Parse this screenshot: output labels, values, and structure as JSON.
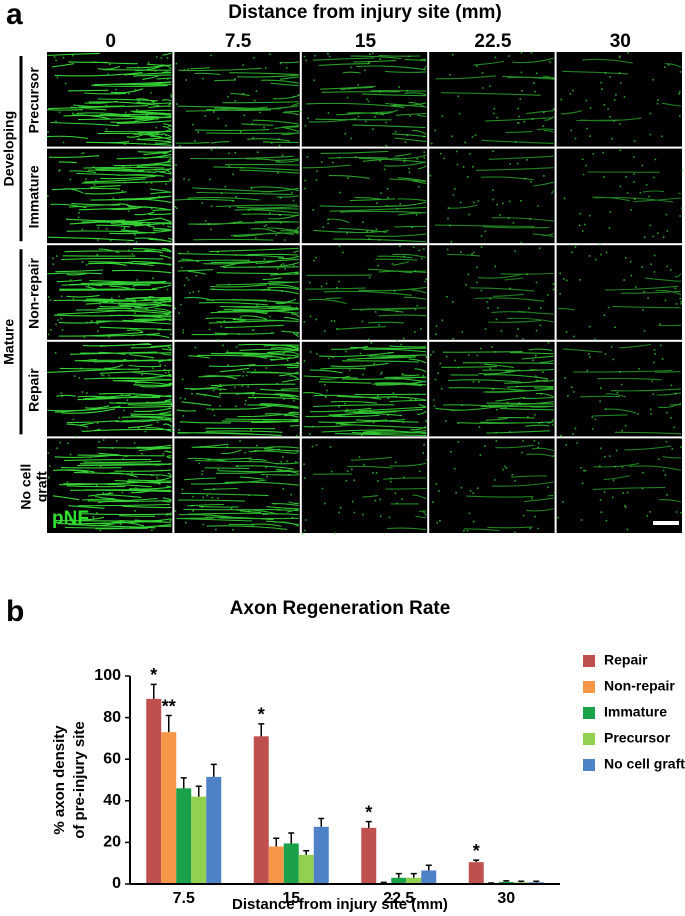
{
  "panel_a": {
    "label": "a",
    "title": "Distance from injury site (mm)",
    "columns": [
      "0",
      "7.5",
      "15",
      "22.5",
      "30"
    ],
    "groups": [
      {
        "name": "Developing",
        "rows": [
          {
            "label_lines": [
              "Precursor"
            ]
          },
          {
            "label_lines": [
              "Immature"
            ]
          }
        ]
      },
      {
        "name": "Mature",
        "rows": [
          {
            "label_lines": [
              "Non-repair"
            ]
          },
          {
            "label_lines": [
              "Repair"
            ]
          }
        ]
      }
    ],
    "extra_rows": [
      {
        "label_lines": [
          "No cell",
          "graft"
        ]
      }
    ],
    "stain": "pNF"
  },
  "panel_b": {
    "label": "b",
    "chart_data": {
      "type": "bar",
      "title": "Axon Regeneration Rate",
      "xlabel": "Distance from injury site (mm)",
      "ylabel_lines": [
        "% axon density",
        "of pre-injury site"
      ],
      "categories": [
        "7.5",
        "15",
        "22.5",
        "30"
      ],
      "series": [
        {
          "name": "Repair",
          "color": "#c0504d",
          "values": [
            89,
            71,
            27,
            10.5
          ],
          "errors": [
            7,
            6,
            3,
            1
          ]
        },
        {
          "name": "Non-repair",
          "color": "#f79646",
          "values": [
            73,
            18,
            0.5,
            0.3
          ],
          "errors": [
            8,
            4,
            0.3,
            0.2
          ]
        },
        {
          "name": "Immature",
          "color": "#1aa14a",
          "values": [
            46,
            19.5,
            3,
            1
          ],
          "errors": [
            5,
            5,
            2,
            0.5
          ]
        },
        {
          "name": "Precursor",
          "color": "#92d050",
          "values": [
            42,
            14,
            3,
            0.8
          ],
          "errors": [
            5,
            2,
            2,
            0.5
          ]
        },
        {
          "name": "No cell graft",
          "color": "#4f81c7",
          "values": [
            51.5,
            27.5,
            6.5,
            0.8
          ],
          "errors": [
            6,
            4,
            2.5,
            0.5
          ]
        }
      ],
      "annotations": [
        {
          "text": "*",
          "category": 0,
          "series": 0
        },
        {
          "text": "**",
          "category": 0,
          "series": 1
        },
        {
          "text": "*",
          "category": 1,
          "series": 0
        },
        {
          "text": "*",
          "category": 2,
          "series": 0
        },
        {
          "text": "*",
          "category": 3,
          "series": 0
        }
      ],
      "ylim": [
        0,
        100
      ],
      "yticks": [
        0,
        20,
        40,
        60,
        80,
        100
      ],
      "legend": "right"
    }
  }
}
